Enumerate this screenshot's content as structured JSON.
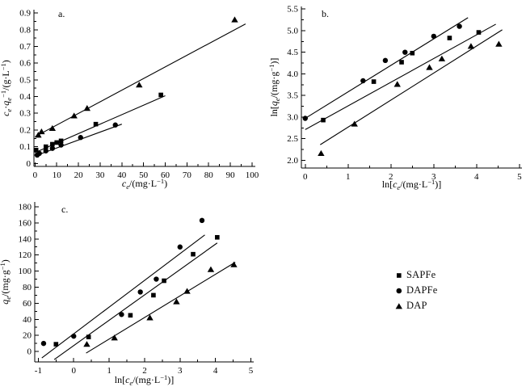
{
  "figure": {
    "background": "#ffffff",
    "ink_color": "#000000"
  },
  "legend": {
    "items": [
      {
        "label": "SAPFe",
        "marker": "square"
      },
      {
        "label": "DAPFe",
        "marker": "circle"
      },
      {
        "label": "DAP",
        "marker": "triangle"
      }
    ]
  },
  "chart_data": [
    {
      "id": "chart-a",
      "type": "scatter",
      "panel_label": "a.",
      "xlabel": "*c*_e_/(mg·L^−1^)",
      "ylabel": "*c*_e_·*q*_e_^−1^/(g·L^−1^)",
      "xlim": [
        -0.5,
        101.5
      ],
      "ylim": [
        -0.018,
        0.92
      ],
      "xtick_labels": [
        "0",
        "10",
        "20",
        "30",
        "40",
        "50",
        "60",
        "70",
        "80",
        "90",
        "100"
      ],
      "ytick_labels": [
        "0",
        "0.1",
        "0.2",
        "0.3",
        "0.4",
        "0.5",
        "0.6",
        "0.7",
        "0.8",
        "0.9"
      ],
      "x_minor_step": 5,
      "y_minor_step": 0.05,
      "grid": false,
      "legend_position": "none",
      "series": [
        {
          "name": "SAPFe",
          "marker": "square",
          "points": [
            [
              0.5,
              0.08
            ],
            [
              5,
              0.1
            ],
            [
              8,
              0.115
            ],
            [
              10,
              0.125
            ],
            [
              12,
              0.135
            ],
            [
              28,
              0.235
            ],
            [
              58,
              0.41
            ]
          ],
          "fit_line": [
            0,
            0.065,
            60,
            0.405
          ]
        },
        {
          "name": "DAPFe",
          "marker": "circle",
          "points": [
            [
              1,
              0.05
            ],
            [
              2,
              0.06
            ],
            [
              5,
              0.075
            ],
            [
              8,
              0.09
            ],
            [
              12,
              0.11
            ],
            [
              21,
              0.155
            ],
            [
              37,
              0.23
            ]
          ],
          "fit_line": [
            0,
            0.045,
            40,
            0.235
          ]
        },
        {
          "name": "DAP",
          "marker": "triangle",
          "points": [
            [
              1.5,
              0.17
            ],
            [
              3,
              0.19
            ],
            [
              8,
              0.21
            ],
            [
              18,
              0.285
            ],
            [
              24,
              0.33
            ],
            [
              48,
              0.47
            ],
            [
              92,
              0.86
            ]
          ],
          "fit_line": [
            0,
            0.16,
            97,
            0.835
          ]
        }
      ]
    },
    {
      "id": "chart-b",
      "type": "scatter",
      "panel_label": "b.",
      "xlabel": "ln[*c*_e_/(mg·L^−1^)]",
      "ylabel": "ln[*q*_e_/(mg·g^−1^)]",
      "xlim": [
        -0.09,
        5.06
      ],
      "ylim": [
        1.82,
        5.56
      ],
      "xtick_labels": [
        "0",
        "1",
        "2",
        "3",
        "4",
        "5"
      ],
      "ytick_labels": [
        "2.0",
        "2.5",
        "3.0",
        "3.5",
        "4.0",
        "4.5",
        "5.0",
        "5.5"
      ],
      "x_minor_step": 0.5,
      "y_minor_step": 0.25,
      "grid": false,
      "legend_position": "none",
      "series": [
        {
          "name": "SAPFe",
          "marker": "square",
          "points": [
            [
              0.42,
              2.93
            ],
            [
              1.6,
              3.82
            ],
            [
              2.25,
              4.27
            ],
            [
              2.5,
              4.48
            ],
            [
              3.37,
              4.83
            ],
            [
              4.05,
              4.96
            ]
          ],
          "fit_line": [
            0,
            2.71,
            4.45,
            5.15
          ]
        },
        {
          "name": "DAPFe",
          "marker": "circle",
          "points": [
            [
              0,
              2.97
            ],
            [
              1.35,
              3.84
            ],
            [
              1.87,
              4.31
            ],
            [
              2.33,
              4.5
            ],
            [
              3.0,
              4.87
            ],
            [
              3.6,
              5.1
            ]
          ],
          "fit_line": [
            0,
            2.97,
            3.8,
            5.3
          ]
        },
        {
          "name": "DAP",
          "marker": "triangle",
          "points": [
            [
              0.37,
              2.16
            ],
            [
              1.15,
              2.84
            ],
            [
              2.15,
              3.76
            ],
            [
              2.9,
              4.15
            ],
            [
              3.19,
              4.35
            ],
            [
              3.87,
              4.64
            ],
            [
              4.52,
              4.69
            ]
          ],
          "fit_line": [
            0.35,
            2.36,
            4.6,
            5.02
          ]
        }
      ]
    },
    {
      "id": "chart-c",
      "type": "scatter",
      "panel_label": "c.",
      "xlabel": "ln[*c*_e_/(mg·L^−1^)]",
      "ylabel": "*q*_e_/(mg·g^−1^)",
      "xlim": [
        -1.1,
        5.08
      ],
      "ylim": [
        -13,
        186
      ],
      "xtick_labels": [
        "-1",
        "0",
        "1",
        "2",
        "3",
        "4",
        "5"
      ],
      "ytick_labels": [
        "0",
        "20",
        "40",
        "60",
        "80",
        "100",
        "120",
        "140",
        "160",
        "180"
      ],
      "x_minor_step": 0.5,
      "y_minor_step": 10,
      "grid": false,
      "legend_position": "none",
      "series": [
        {
          "name": "SAPFe",
          "marker": "square",
          "points": [
            [
              -0.5,
              9
            ],
            [
              0.42,
              18
            ],
            [
              1.6,
              45
            ],
            [
              2.25,
              70
            ],
            [
              2.55,
              88
            ],
            [
              3.37,
              121
            ],
            [
              4.05,
              142
            ]
          ],
          "fit_line": [
            -0.55,
            -10,
            4.05,
            135
          ]
        },
        {
          "name": "DAPFe",
          "marker": "circle",
          "points": [
            [
              -0.85,
              10
            ],
            [
              0,
              19
            ],
            [
              1.35,
              46
            ],
            [
              1.88,
              74
            ],
            [
              2.33,
              90
            ],
            [
              3.0,
              130
            ],
            [
              3.62,
              163
            ]
          ],
          "fit_line": [
            -0.9,
            -8,
            3.7,
            145
          ]
        },
        {
          "name": "DAP",
          "marker": "triangle",
          "points": [
            [
              0.37,
              9
            ],
            [
              1.15,
              17
            ],
            [
              2.15,
              42
            ],
            [
              2.9,
              62
            ],
            [
              3.2,
              75
            ],
            [
              3.87,
              102
            ],
            [
              4.52,
              108
            ]
          ],
          "fit_line": [
            0.35,
            -2,
            4.56,
            111
          ]
        }
      ]
    }
  ]
}
